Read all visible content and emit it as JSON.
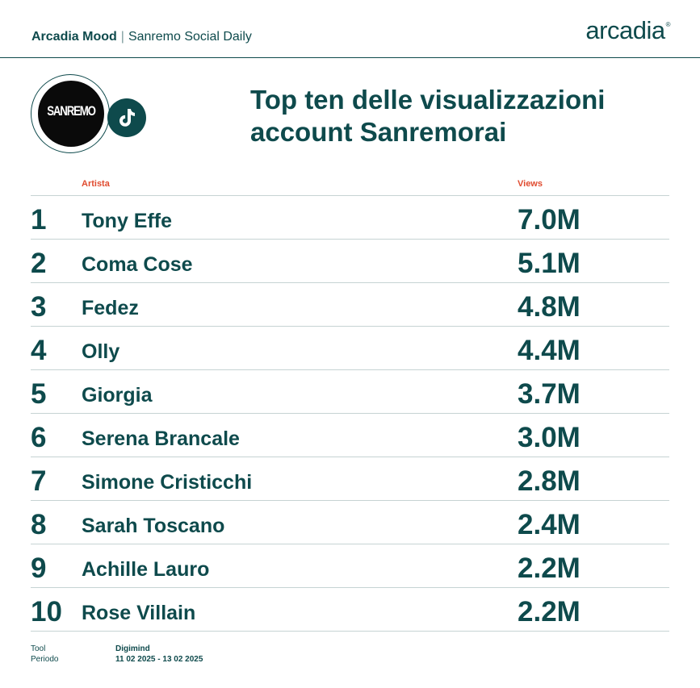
{
  "header": {
    "brand": "Arcadia Mood",
    "separator": "|",
    "subtitle": "Sanremo Social Daily",
    "logo": "arcadia",
    "logo_mark": "®"
  },
  "badge": {
    "text": "SANREMO",
    "icon": "tiktok-icon"
  },
  "title": "Top ten delle visualizzazioni account Sanremorai",
  "table": {
    "headers": {
      "artist": "Artista",
      "views": "Views"
    },
    "rows": [
      {
        "rank": "1",
        "artist": "Tony Effe",
        "views": "7.0M"
      },
      {
        "rank": "2",
        "artist": "Coma Cose",
        "views": "5.1M"
      },
      {
        "rank": "3",
        "artist": "Fedez",
        "views": "4.8M"
      },
      {
        "rank": "4",
        "artist": "Olly",
        "views": "4.4M"
      },
      {
        "rank": "5",
        "artist": "Giorgia",
        "views": "3.7M"
      },
      {
        "rank": "6",
        "artist": "Serena Brancale",
        "views": "3.0M"
      },
      {
        "rank": "7",
        "artist": "Simone Cristicchi",
        "views": "2.8M"
      },
      {
        "rank": "8",
        "artist": "Sarah Toscano",
        "views": "2.4M"
      },
      {
        "rank": "9",
        "artist": "Achille Lauro",
        "views": "2.2M"
      },
      {
        "rank": "10",
        "artist": "Rose Villain",
        "views": "2.2M"
      }
    ]
  },
  "footer": {
    "tool_label": "Tool",
    "tool_value": "Digimind",
    "period_label": "Periodo",
    "period_value": "11 02 2025 - 13 02 2025"
  },
  "colors": {
    "primary": "#0e4a4c",
    "accent": "#e04b2f",
    "divider": "#c6d3d3"
  }
}
